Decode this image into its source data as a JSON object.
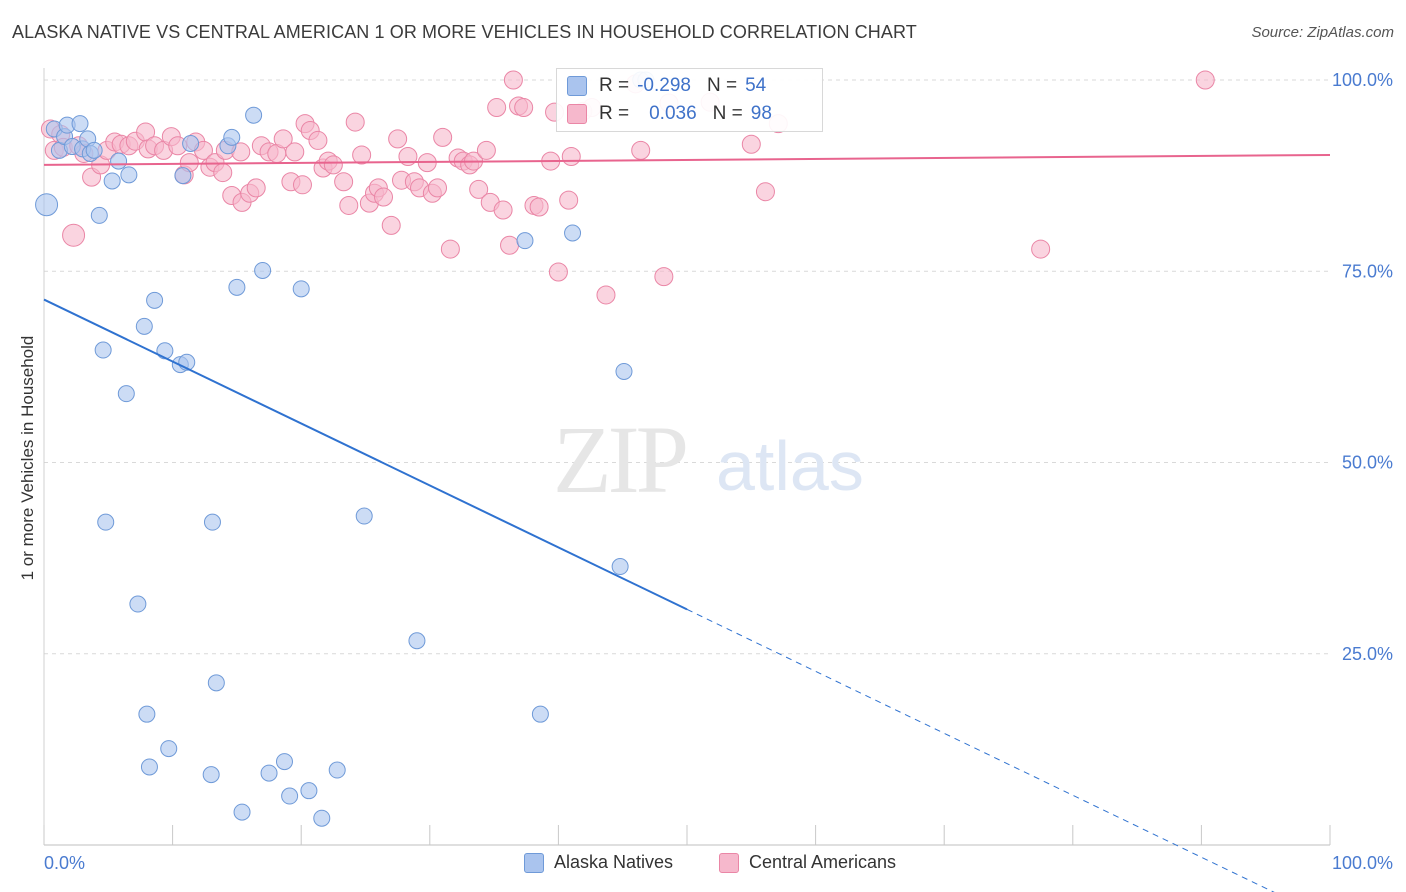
{
  "title": "ALASKA NATIVE VS CENTRAL AMERICAN 1 OR MORE VEHICLES IN HOUSEHOLD CORRELATION CHART",
  "source": "Source: ZipAtlas.com",
  "watermark": {
    "zip": "ZIP",
    "atlas": "atlas"
  },
  "colors": {
    "blue_fill": "#aac4ee",
    "blue_stroke": "#6f9ad8",
    "blue_line": "#2f72d0",
    "pink_fill": "#f6b8cc",
    "pink_stroke": "#ea86a6",
    "pink_line": "#e8648e",
    "tick_label": "#4a7bd0",
    "grid": "#d9d9d9"
  },
  "legend_stats": {
    "rows": [
      {
        "r_label": "R =",
        "r_value": "-0.298",
        "n_label": "N =",
        "n_value": "54"
      },
      {
        "r_label": "R =",
        "r_value": "0.036",
        "n_label": "N =",
        "n_value": "98"
      }
    ]
  },
  "bottom_legend": [
    "Alaska Natives",
    "Central Americans"
  ],
  "chart_data": {
    "type": "scatter",
    "title": "ALASKA NATIVE VS CENTRAL AMERICAN 1 OR MORE VEHICLES IN HOUSEHOLD CORRELATION CHART",
    "xlabel": "",
    "ylabel": "1 or more Vehicles in Household",
    "xlim": [
      0,
      100
    ],
    "ylim": [
      0,
      100
    ],
    "x_tick_labels": [
      "0.0%",
      "100.0%"
    ],
    "y_tick_labels": [
      "25.0%",
      "50.0%",
      "75.0%",
      "100.0%"
    ],
    "y_tick_values": [
      25,
      50,
      75,
      100
    ],
    "grid": true,
    "legend_position": "bottom",
    "series": [
      {
        "name": "Alaska Natives",
        "color": "#aac4ee",
        "trend": {
          "x_start": 0,
          "y_start": 71.3,
          "x_solid_end": 50,
          "y_solid_end": 30.8,
          "x_end": 100,
          "y_end": -9.7
        },
        "points": [
          [
            0.2,
            83.7,
            11
          ],
          [
            0.8,
            93.6,
            8
          ],
          [
            1.2,
            90.8,
            8
          ],
          [
            1.6,
            92.6,
            8
          ],
          [
            1.8,
            94.1,
            8
          ],
          [
            2.2,
            91.3,
            8
          ],
          [
            2.8,
            94.3,
            8
          ],
          [
            3.0,
            91.0,
            8
          ],
          [
            3.4,
            92.3,
            8
          ],
          [
            3.6,
            90.4,
            8
          ],
          [
            3.9,
            90.8,
            8
          ],
          [
            4.3,
            82.3,
            8
          ],
          [
            4.6,
            64.7,
            8
          ],
          [
            4.8,
            42.2,
            8
          ],
          [
            5.3,
            86.8,
            8
          ],
          [
            5.8,
            89.4,
            8
          ],
          [
            6.4,
            59.0,
            8
          ],
          [
            6.6,
            87.6,
            8
          ],
          [
            7.3,
            31.5,
            8
          ],
          [
            7.8,
            67.8,
            8
          ],
          [
            8.0,
            17.1,
            8
          ],
          [
            8.2,
            10.2,
            8
          ],
          [
            8.6,
            71.2,
            8
          ],
          [
            9.4,
            64.6,
            8
          ],
          [
            9.7,
            12.6,
            8
          ],
          [
            10.6,
            62.8,
            8
          ],
          [
            10.8,
            87.5,
            8
          ],
          [
            11.1,
            63.1,
            8
          ],
          [
            11.4,
            91.7,
            8
          ],
          [
            13.0,
            9.2,
            8
          ],
          [
            13.1,
            42.2,
            8
          ],
          [
            13.4,
            21.2,
            8
          ],
          [
            14.3,
            91.4,
            8
          ],
          [
            14.6,
            92.5,
            8
          ],
          [
            15.0,
            72.9,
            8
          ],
          [
            15.4,
            4.3,
            8
          ],
          [
            16.3,
            95.4,
            8
          ],
          [
            17.0,
            75.1,
            8
          ],
          [
            17.5,
            9.4,
            8
          ],
          [
            18.7,
            10.9,
            8
          ],
          [
            19.1,
            6.4,
            8
          ],
          [
            20.0,
            72.7,
            8
          ],
          [
            20.6,
            7.1,
            8
          ],
          [
            21.6,
            3.5,
            8
          ],
          [
            22.8,
            9.8,
            8
          ],
          [
            24.9,
            43.0,
            8
          ],
          [
            29.0,
            26.7,
            8
          ],
          [
            37.4,
            79.0,
            8
          ],
          [
            38.6,
            17.1,
            8
          ],
          [
            41.1,
            80.0,
            8
          ],
          [
            44.8,
            36.4,
            8
          ],
          [
            45.1,
            61.9,
            8
          ],
          [
            46.4,
            100.0,
            8
          ],
          [
            46.8,
            100.0,
            8
          ]
        ]
      },
      {
        "name": "Central Americans",
        "color": "#f6b8cc",
        "trend": {
          "x_start": 0,
          "y_start": 88.9,
          "x_end": 100,
          "y_end": 90.2
        },
        "points": [
          [
            0.5,
            93.6,
            9
          ],
          [
            0.8,
            90.8,
            9
          ],
          [
            1.3,
            92.9,
            9
          ],
          [
            1.5,
            91.2,
            9
          ],
          [
            2.3,
            79.7,
            11
          ],
          [
            2.7,
            91.4,
            9
          ],
          [
            3.1,
            90.4,
            9
          ],
          [
            3.7,
            87.3,
            9
          ],
          [
            4.4,
            88.9,
            9
          ],
          [
            4.9,
            90.8,
            9
          ],
          [
            5.5,
            91.9,
            9
          ],
          [
            6.0,
            91.6,
            9
          ],
          [
            6.6,
            91.4,
            9
          ],
          [
            7.1,
            92.0,
            9
          ],
          [
            7.9,
            93.2,
            9
          ],
          [
            8.1,
            91.0,
            9
          ],
          [
            8.6,
            91.4,
            9
          ],
          [
            9.3,
            90.8,
            9
          ],
          [
            9.9,
            92.6,
            9
          ],
          [
            10.4,
            91.4,
            9
          ],
          [
            10.9,
            87.6,
            9
          ],
          [
            11.3,
            89.2,
            9
          ],
          [
            11.8,
            91.9,
            9
          ],
          [
            12.4,
            90.8,
            9
          ],
          [
            12.9,
            88.6,
            9
          ],
          [
            13.3,
            89.2,
            9
          ],
          [
            13.9,
            87.9,
            9
          ],
          [
            14.1,
            90.8,
            9
          ],
          [
            14.6,
            84.9,
            9
          ],
          [
            15.3,
            90.6,
            9
          ],
          [
            15.4,
            84.0,
            9
          ],
          [
            16.0,
            85.2,
            9
          ],
          [
            16.5,
            85.9,
            9
          ],
          [
            16.9,
            91.4,
            9
          ],
          [
            17.5,
            90.6,
            9
          ],
          [
            18.1,
            90.4,
            9
          ],
          [
            18.6,
            92.3,
            9
          ],
          [
            19.2,
            86.7,
            9
          ],
          [
            19.5,
            90.6,
            9
          ],
          [
            20.1,
            86.3,
            9
          ],
          [
            20.3,
            94.3,
            9
          ],
          [
            20.7,
            93.4,
            9
          ],
          [
            21.3,
            92.1,
            9
          ],
          [
            21.7,
            88.5,
            9
          ],
          [
            22.1,
            89.4,
            9
          ],
          [
            22.5,
            88.9,
            9
          ],
          [
            23.3,
            86.7,
            9
          ],
          [
            23.7,
            83.6,
            9
          ],
          [
            24.2,
            94.5,
            9
          ],
          [
            24.7,
            90.2,
            9
          ],
          [
            25.3,
            83.9,
            9
          ],
          [
            25.7,
            85.2,
            9
          ],
          [
            26.0,
            85.9,
            9
          ],
          [
            26.4,
            84.7,
            9
          ],
          [
            27.0,
            81.0,
            9
          ],
          [
            27.5,
            92.3,
            9
          ],
          [
            27.8,
            86.9,
            9
          ],
          [
            28.3,
            90.0,
            9
          ],
          [
            28.8,
            86.7,
            9
          ],
          [
            29.2,
            85.9,
            9
          ],
          [
            29.8,
            89.2,
            9
          ],
          [
            30.2,
            85.2,
            9
          ],
          [
            30.6,
            85.9,
            9
          ],
          [
            31.0,
            92.5,
            9
          ],
          [
            31.6,
            77.9,
            9
          ],
          [
            32.2,
            89.8,
            9
          ],
          [
            32.6,
            89.4,
            9
          ],
          [
            33.1,
            88.9,
            9
          ],
          [
            33.4,
            89.4,
            9
          ],
          [
            33.8,
            85.7,
            9
          ],
          [
            34.4,
            90.8,
            9
          ],
          [
            34.7,
            84.0,
            9
          ],
          [
            35.2,
            96.4,
            9
          ],
          [
            35.7,
            83.0,
            9
          ],
          [
            36.2,
            78.4,
            9
          ],
          [
            36.9,
            96.6,
            9
          ],
          [
            37.3,
            96.4,
            9
          ],
          [
            38.1,
            83.6,
            9
          ],
          [
            38.5,
            83.4,
            9
          ],
          [
            39.4,
            89.4,
            9
          ],
          [
            39.7,
            95.8,
            9
          ],
          [
            40.0,
            74.9,
            9
          ],
          [
            40.8,
            84.3,
            9
          ],
          [
            41.0,
            90.0,
            9
          ],
          [
            41.9,
            95.9,
            9
          ],
          [
            42.6,
            96.4,
            9
          ],
          [
            43.7,
            71.9,
            9
          ],
          [
            46.4,
            90.8,
            9
          ],
          [
            48.2,
            74.3,
            9
          ],
          [
            55.0,
            91.6,
            9
          ],
          [
            56.1,
            85.4,
            9
          ],
          [
            57.1,
            94.3,
            9
          ],
          [
            77.5,
            77.9,
            9
          ],
          [
            90.3,
            100.0,
            9
          ],
          [
            36.5,
            100.0,
            9
          ],
          [
            46.0,
            99.5,
            9
          ],
          [
            48.6,
            97.0,
            9
          ],
          [
            51.8,
            97.1,
            9
          ]
        ]
      }
    ]
  }
}
